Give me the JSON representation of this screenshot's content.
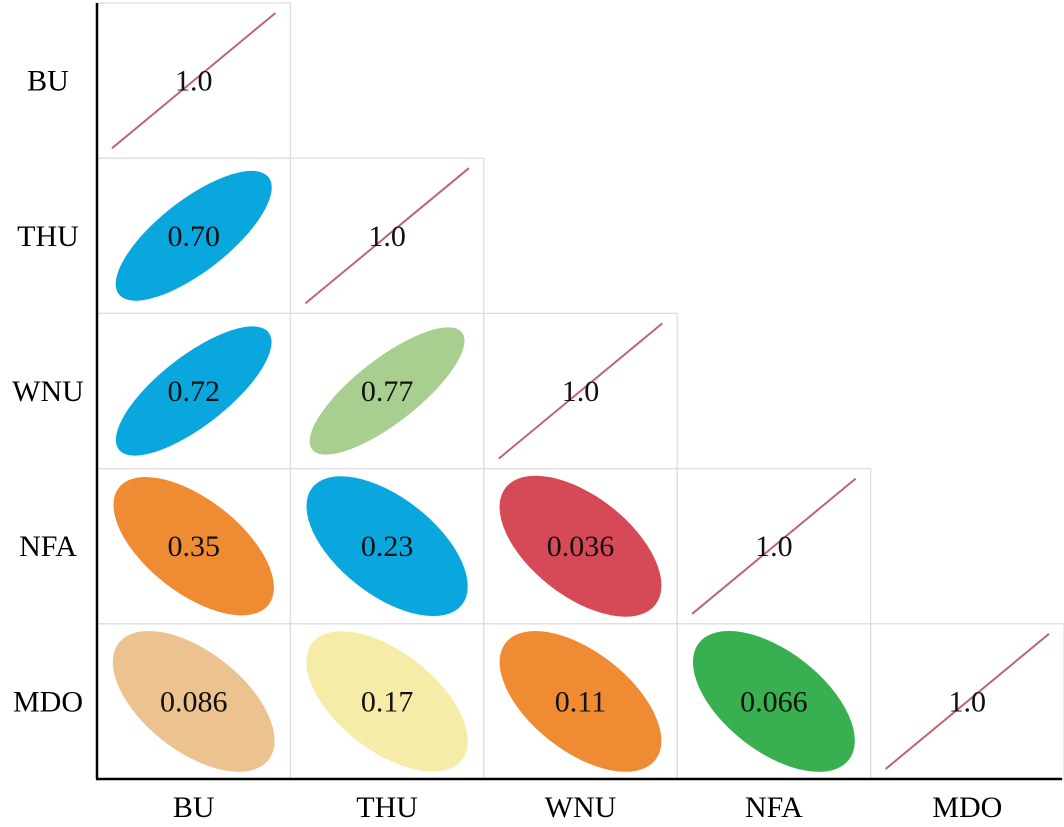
{
  "chart_data": {
    "type": "correlation-matrix",
    "variables": [
      "BU",
      "THU",
      "WNU",
      "NFA",
      "MDO"
    ],
    "diagonal_label": "1.0",
    "cells": [
      {
        "row": "THU",
        "col": "BU",
        "value": 0.7,
        "label": "0.70",
        "direction": "positive",
        "color": "#0aa7df"
      },
      {
        "row": "WNU",
        "col": "BU",
        "value": 0.72,
        "label": "0.72",
        "direction": "positive",
        "color": "#0aa7df"
      },
      {
        "row": "WNU",
        "col": "THU",
        "value": 0.77,
        "label": "0.77",
        "direction": "positive",
        "color": "#a8cf8f"
      },
      {
        "row": "NFA",
        "col": "BU",
        "value": 0.35,
        "label": "0.35",
        "direction": "negative",
        "color": "#ef8c33"
      },
      {
        "row": "NFA",
        "col": "THU",
        "value": 0.23,
        "label": "0.23",
        "direction": "negative",
        "color": "#0aa7df"
      },
      {
        "row": "NFA",
        "col": "WNU",
        "value": 0.036,
        "label": "0.036",
        "direction": "negative",
        "color": "#d64a58"
      },
      {
        "row": "MDO",
        "col": "BU",
        "value": 0.086,
        "label": "0.086",
        "direction": "negative",
        "color": "#ecc28f"
      },
      {
        "row": "MDO",
        "col": "THU",
        "value": 0.17,
        "label": "0.17",
        "direction": "negative",
        "color": "#f5eca8"
      },
      {
        "row": "MDO",
        "col": "WNU",
        "value": 0.11,
        "label": "0.11",
        "direction": "negative",
        "color": "#ef8c33"
      },
      {
        "row": "MDO",
        "col": "NFA",
        "value": 0.066,
        "label": "0.066",
        "direction": "negative",
        "color": "#38b04f"
      }
    ],
    "diagonal_line_color": "#c0656f",
    "axis_color": "#000000",
    "cell_border_color": "#dcdcdc"
  }
}
